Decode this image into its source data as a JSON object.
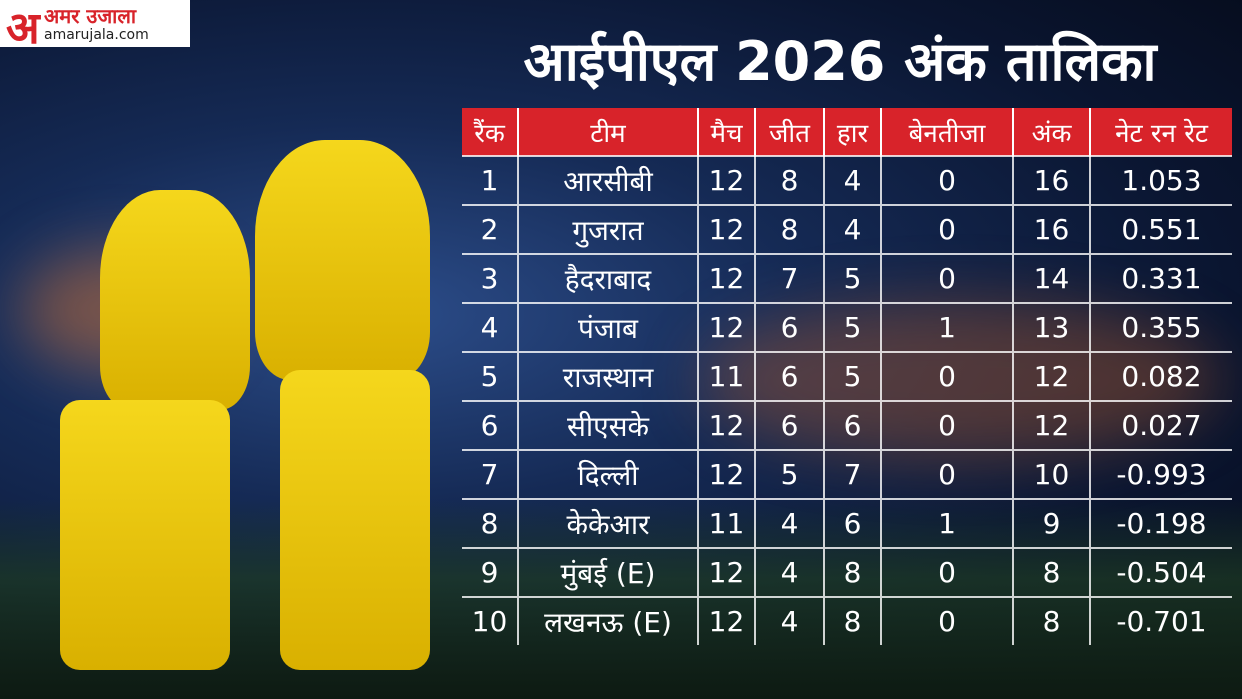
{
  "logo": {
    "mark": "अ",
    "name": "अमर उजाला",
    "url": "amarujala.com"
  },
  "title": "आईपीएल 2026 अंक तालिका",
  "table": {
    "header": [
      "रैंक",
      "टीम",
      "मैच",
      "जीत",
      "हार",
      "बेनतीजा",
      "अंक",
      "नेट रन रेट"
    ],
    "rows": [
      [
        "1",
        "आरसीबी",
        "12",
        "8",
        "4",
        "0",
        "16",
        "1.053"
      ],
      [
        "2",
        "गुजरात",
        "12",
        "8",
        "4",
        "0",
        "16",
        "0.551"
      ],
      [
        "3",
        "हैदराबाद",
        "12",
        "7",
        "5",
        "0",
        "14",
        "0.331"
      ],
      [
        "4",
        "पंजाब",
        "12",
        "6",
        "5",
        "1",
        "13",
        "0.355"
      ],
      [
        "5",
        "राजस्थान",
        "11",
        "6",
        "5",
        "0",
        "12",
        "0.082"
      ],
      [
        "6",
        "सीएसके",
        "12",
        "6",
        "6",
        "0",
        "12",
        "0.027"
      ],
      [
        "7",
        "दिल्ली",
        "12",
        "5",
        "7",
        "0",
        "10",
        "-0.993"
      ],
      [
        "8",
        "केकेआर",
        "11",
        "4",
        "6",
        "1",
        "9",
        "-0.198"
      ],
      [
        "9",
        "मुंबई (E)",
        "12",
        "4",
        "8",
        "0",
        "8",
        "-0.504"
      ],
      [
        "10",
        "लखनऊ (E)",
        "12",
        "4",
        "8",
        "0",
        "8",
        "-0.701"
      ]
    ]
  }
}
